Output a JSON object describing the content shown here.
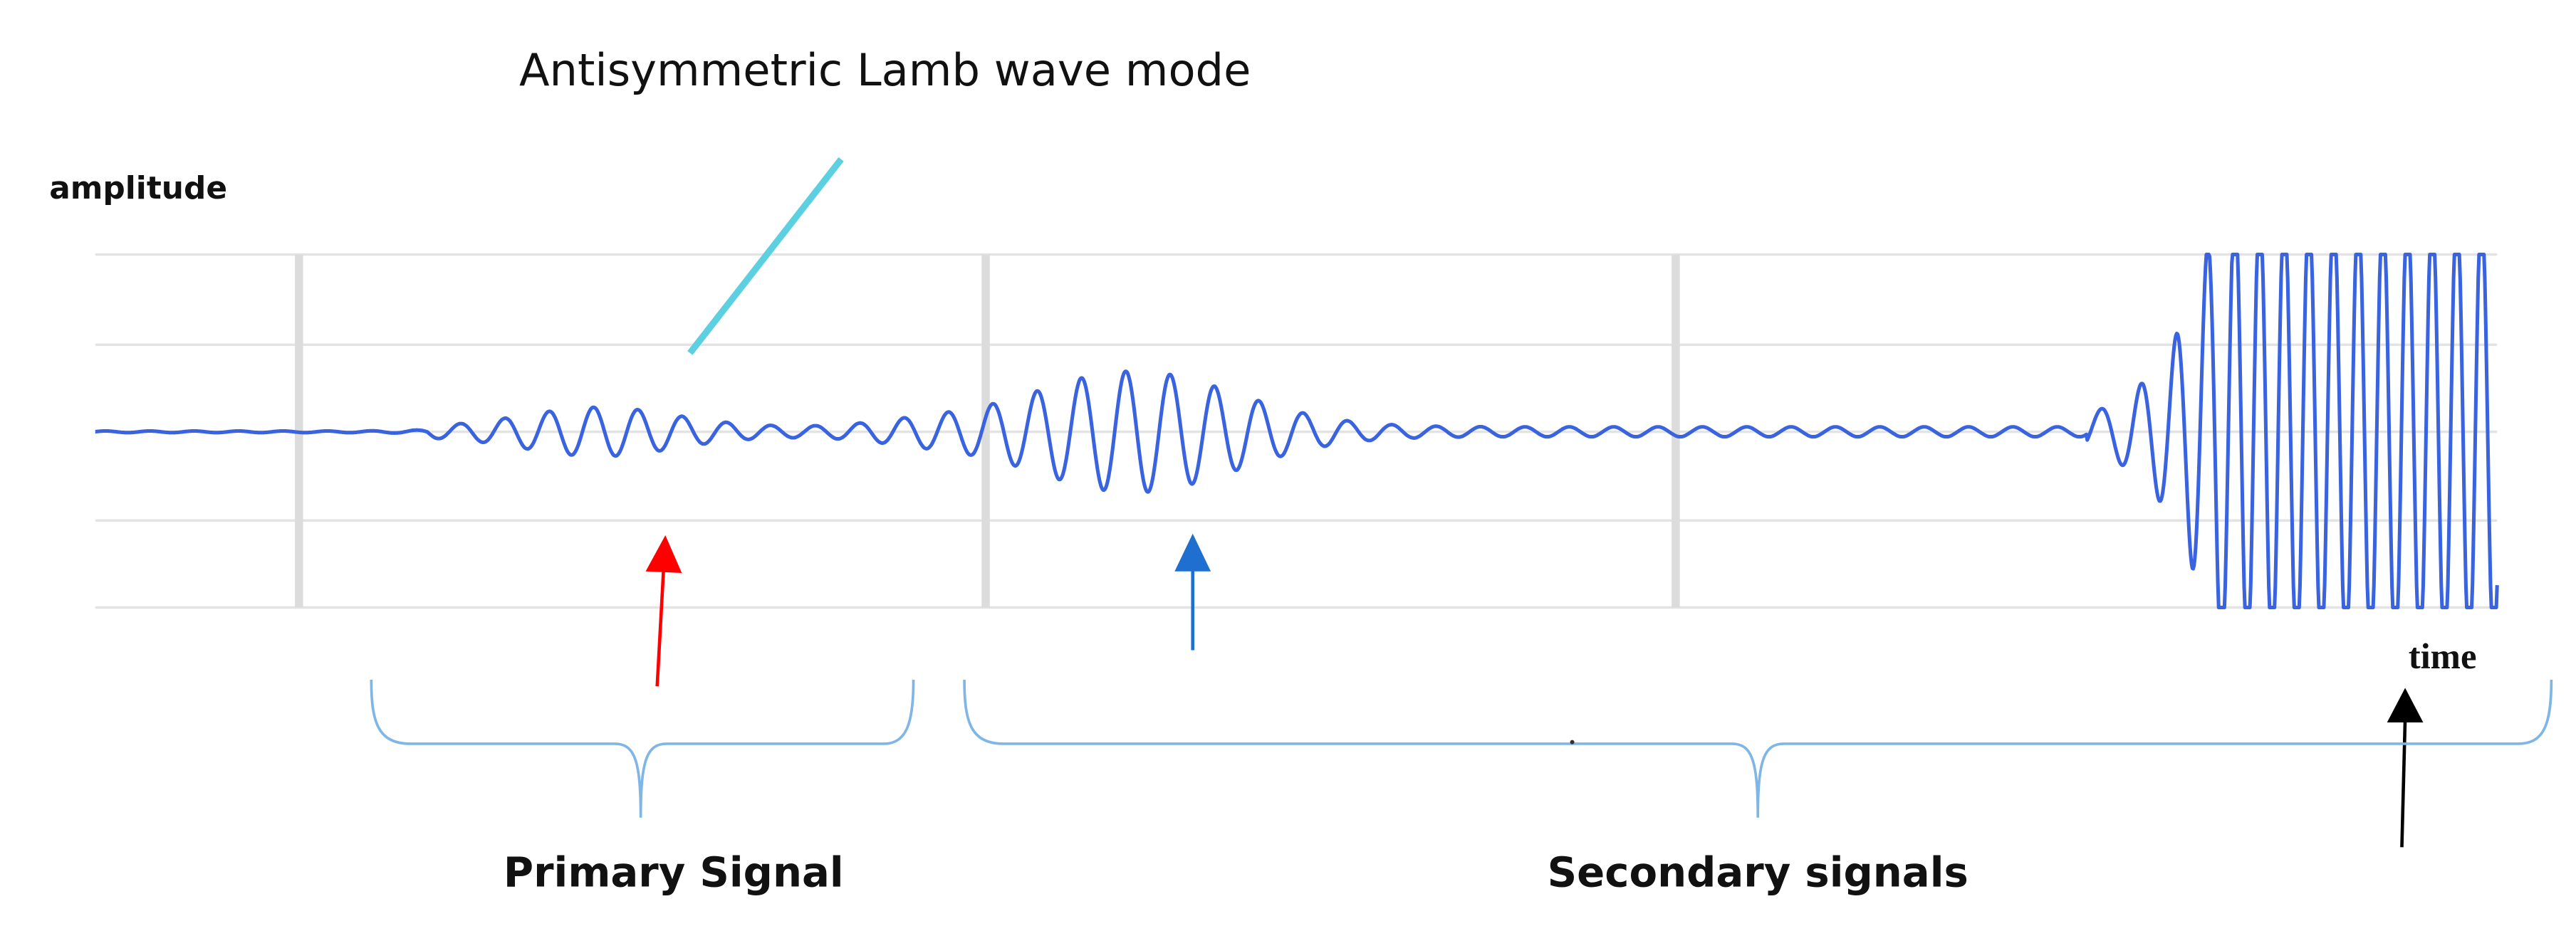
{
  "annotation": "Antisymmetric Lamb wave mode",
  "axes": {
    "y_label": "amplitude",
    "x_label": "time"
  },
  "regions": [
    {
      "label": "Primary Signal"
    },
    {
      "label": "Secondary signals"
    }
  ]
}
